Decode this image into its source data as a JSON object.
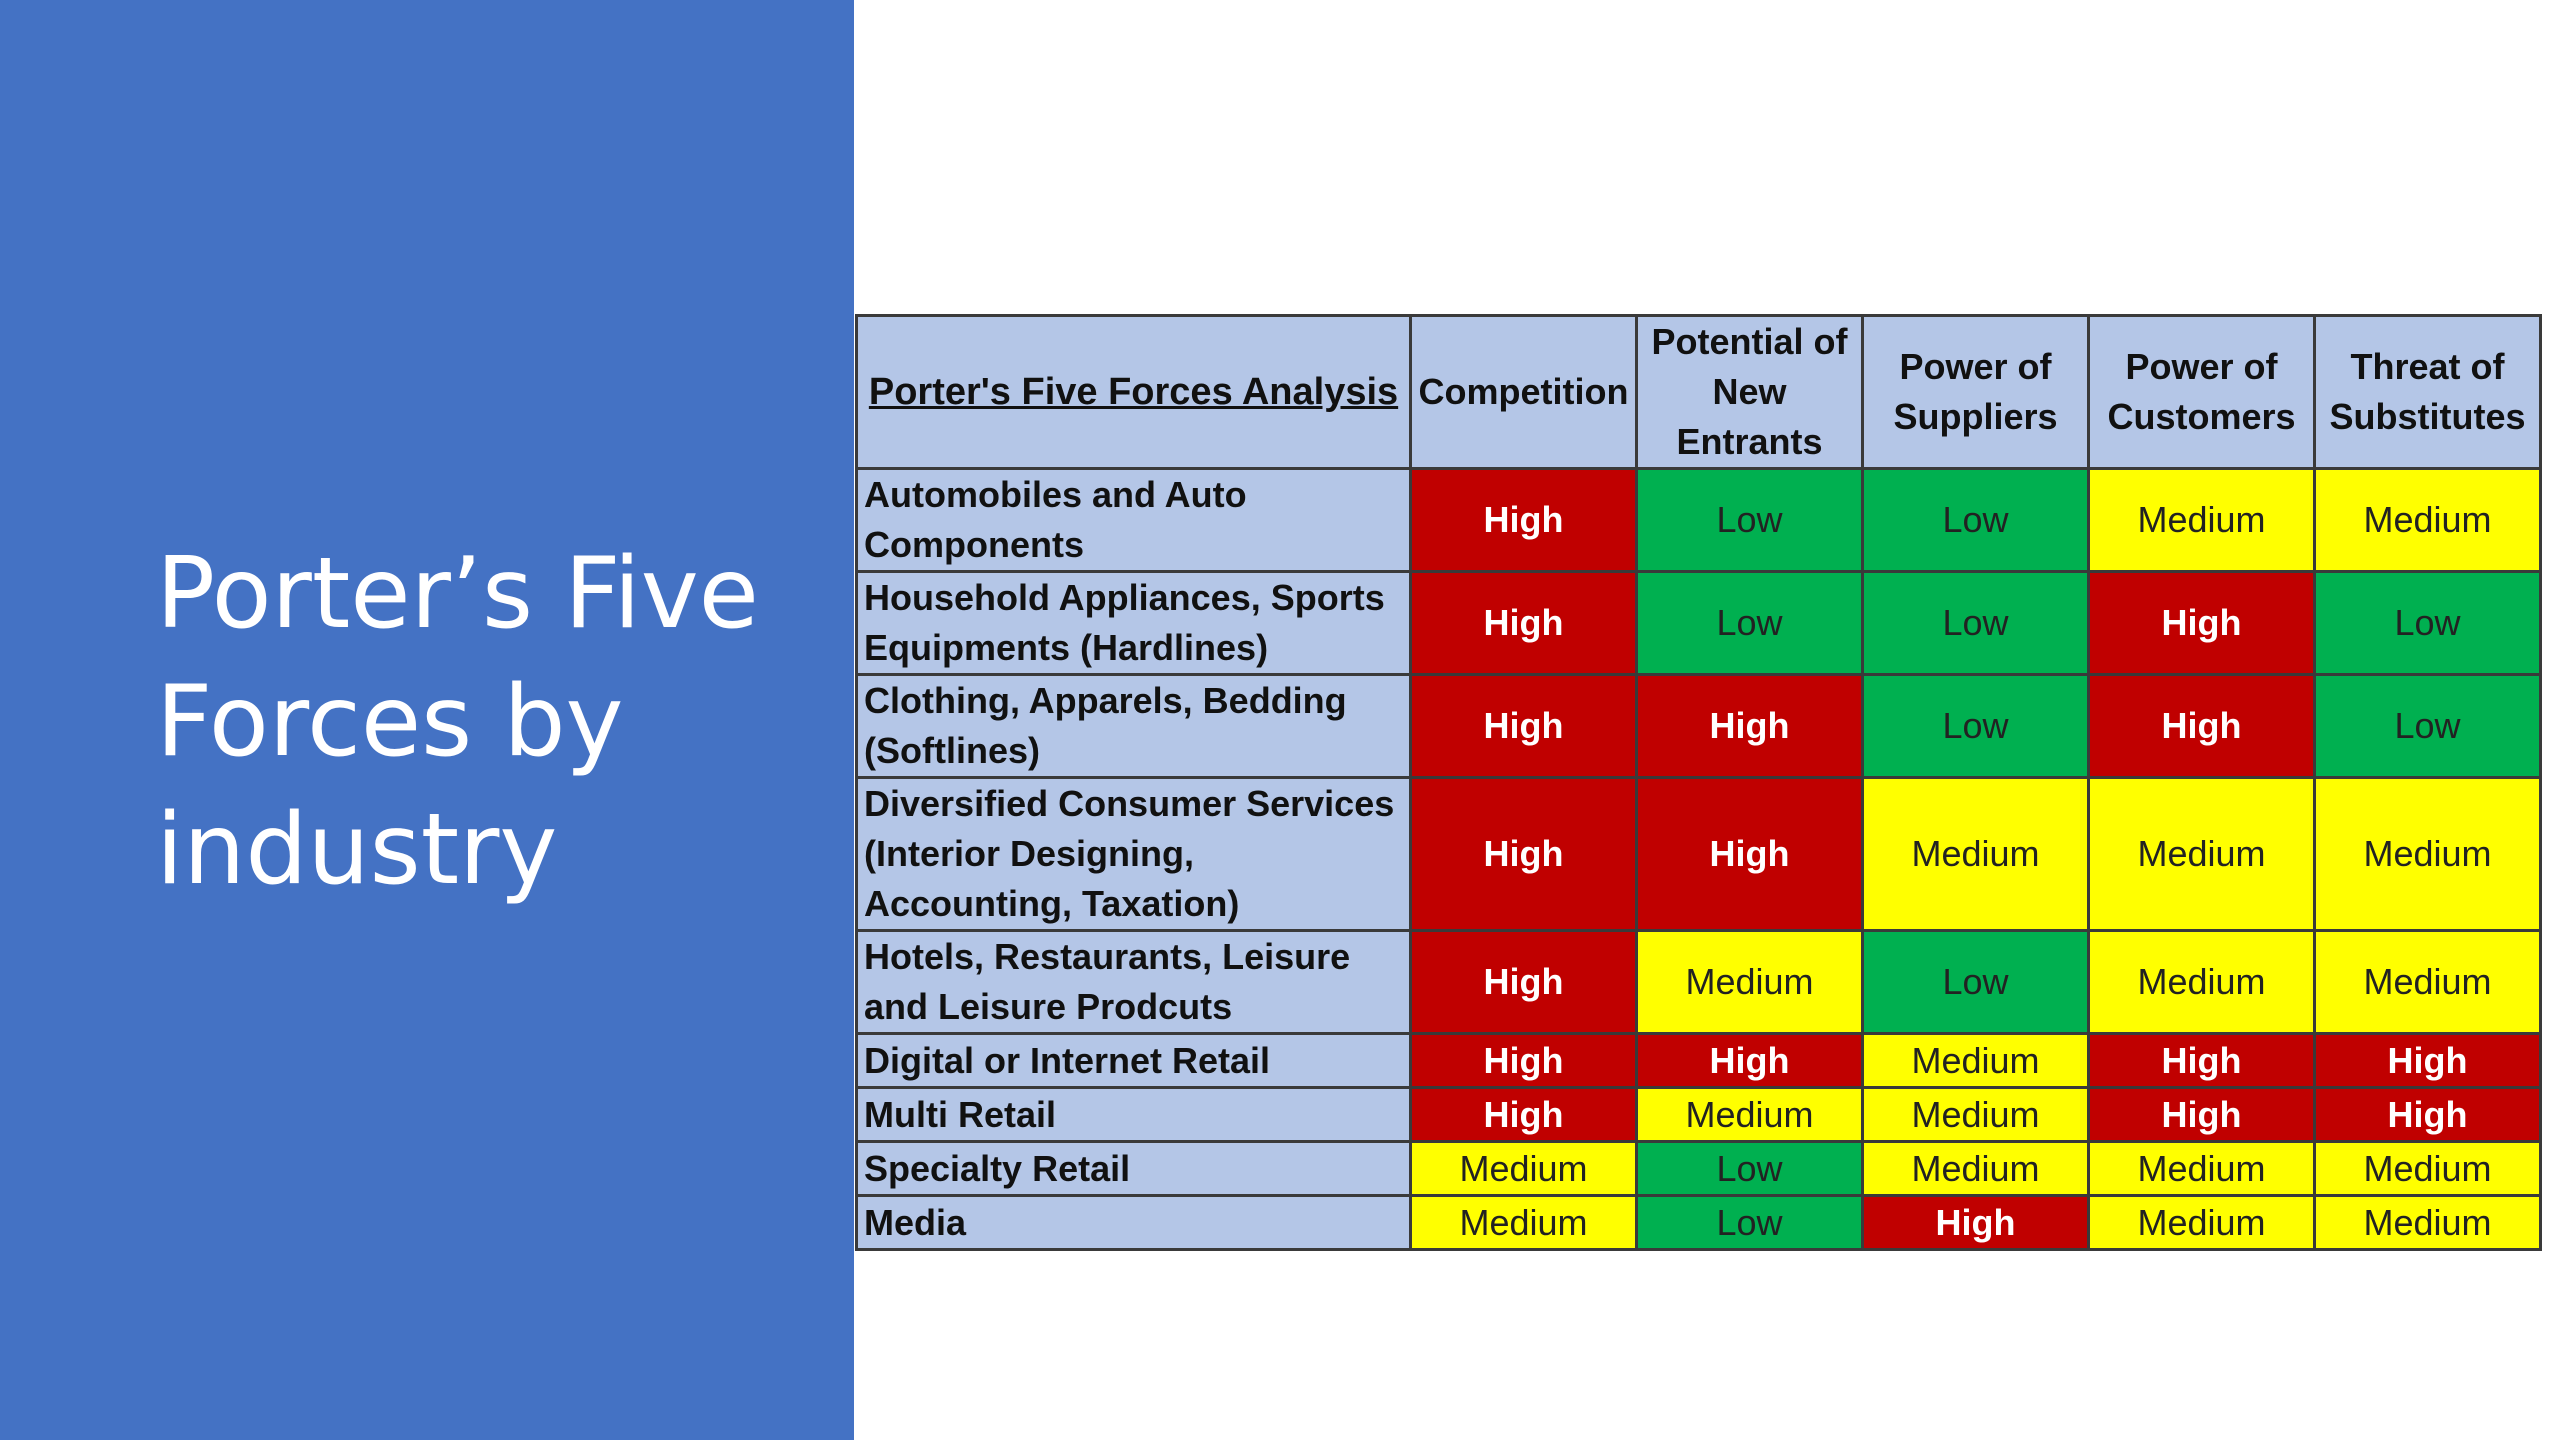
{
  "slide": {
    "title": "Porter’s Five\nForces by\nindustry",
    "panel_color": "#4472c4"
  },
  "table": {
    "title": "Porter's Five Forces Analysis",
    "columns": [
      "Competition",
      "Potential of New Entrants",
      "Power of Suppliers",
      "Power of Customers",
      "Threat of Substitutes"
    ],
    "rows": [
      {
        "industry": "Automobiles and Auto Components",
        "ratings": [
          "High",
          "Low",
          "Low",
          "Medium",
          "Medium"
        ]
      },
      {
        "industry": "Household Appliances, Sports Equipments (Hardlines)",
        "ratings": [
          "High",
          "Low",
          "Low",
          "High",
          "Low"
        ]
      },
      {
        "industry": "Clothing, Apparels, Bedding (Softlines)",
        "ratings": [
          "High",
          "High",
          "Low",
          "High",
          "Low"
        ]
      },
      {
        "industry": "Diversified Consumer Services (Interior Designing, Accounting, Taxation)",
        "ratings": [
          "High",
          "High",
          "Medium",
          "Medium",
          "Medium"
        ]
      },
      {
        "industry": "Hotels, Restaurants, Leisure and Leisure Prodcuts",
        "ratings": [
          "High",
          "Medium",
          "Low",
          "Medium",
          "Medium"
        ]
      },
      {
        "industry": "Digital or Internet Retail",
        "ratings": [
          "High",
          "High",
          "Medium",
          "High",
          "High"
        ]
      },
      {
        "industry": "Multi Retail",
        "ratings": [
          "High",
          "Medium",
          "Medium",
          "High",
          "High"
        ]
      },
      {
        "industry": "Specialty Retail",
        "ratings": [
          "Medium",
          "Low",
          "Medium",
          "Medium",
          "Medium"
        ]
      },
      {
        "industry": "Media",
        "ratings": [
          "Medium",
          "Low",
          "High",
          "Medium",
          "Medium"
        ]
      }
    ],
    "level_colors": {
      "High": "#c00000",
      "Medium": "#ffff00",
      "Low": "#00b050"
    },
    "header_color": "#b4c6e7"
  }
}
